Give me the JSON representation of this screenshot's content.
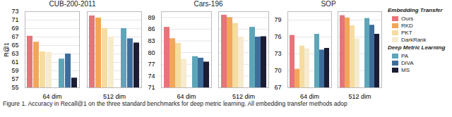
{
  "chart_data": [
    {
      "type": "bar",
      "title": "CUB-200-2011",
      "ylabel": "R@1",
      "categories": [
        "64 dim",
        "512 dim"
      ],
      "series": [
        {
          "name": "Ours",
          "color": "#e8737a",
          "values": [
            67.2,
            72.0
          ]
        },
        {
          "name": "RKD",
          "color": "#f2a65a",
          "values": [
            65.8,
            71.5
          ]
        },
        {
          "name": "PKT",
          "color": "#f5dca0",
          "values": [
            63.5,
            69.0
          ]
        },
        {
          "name": "DarkRank",
          "color": "#f6ebcf",
          "values": [
            63.4,
            67.0
          ]
        },
        {
          "name": "PA",
          "color": "#5ea5b8",
          "values": [
            61.8,
            69.0
          ]
        },
        {
          "name": "DiVA",
          "color": "#3e6d9c",
          "values": [
            63.0,
            66.6
          ]
        },
        {
          "name": "MS",
          "color": "#1a1d33",
          "values": [
            57.3,
            65.6
          ]
        }
      ],
      "ylim": [
        55,
        73
      ],
      "yticks": [
        55,
        57,
        59,
        61,
        63,
        65,
        67,
        69,
        71,
        73
      ],
      "grid": true
    },
    {
      "type": "bar",
      "title": "Cars-196",
      "categories": [
        "64 dim",
        "512 dim"
      ],
      "series": [
        {
          "name": "Ours",
          "color": "#e8737a",
          "values": [
            86.5,
            89.6
          ]
        },
        {
          "name": "RKD",
          "color": "#f2a65a",
          "values": [
            83.6,
            89.0
          ]
        },
        {
          "name": "PKT",
          "color": "#f5dca0",
          "values": [
            82.4,
            87.5
          ]
        },
        {
          "name": "DarkRank",
          "color": "#f6ebcf",
          "values": [
            78.3,
            84.0
          ]
        },
        {
          "name": "PA",
          "color": "#5ea5b8",
          "values": [
            79.0,
            86.5
          ]
        },
        {
          "name": "DiVA",
          "color": "#3e6d9c",
          "values": [
            78.6,
            84.0
          ]
        },
        {
          "name": "MS",
          "color": "#1a1d33",
          "values": [
            77.6,
            84.1
          ]
        }
      ],
      "ylim": [
        71,
        90.5
      ],
      "yticks": [
        71,
        74,
        77,
        80,
        83,
        86,
        89
      ],
      "grid": true
    },
    {
      "type": "bar",
      "title": "SOP",
      "categories": [
        "64 dim",
        "512 dim"
      ],
      "series": [
        {
          "name": "Ours",
          "color": "#e8737a",
          "values": [
            76.3,
            79.8
          ]
        },
        {
          "name": "RKD",
          "color": "#f2a65a",
          "values": [
            70.3,
            79.4
          ]
        },
        {
          "name": "PKT",
          "color": "#f5dca0",
          "values": [
            74.4,
            78.0
          ]
        },
        {
          "name": "DarkRank",
          "color": "#f6ebcf",
          "values": [
            73.9,
            75.7
          ]
        },
        {
          "name": "PA",
          "color": "#5ea5b8",
          "values": [
            76.5,
            79.3
          ]
        },
        {
          "name": "DiVA",
          "color": "#3e6d9c",
          "values": [
            73.7,
            78.1
          ]
        },
        {
          "name": "MS",
          "color": "#1a1d33",
          "values": [
            74.0,
            76.5
          ]
        }
      ],
      "ylim": [
        67,
        80.5
      ],
      "yticks": [
        67,
        70,
        73,
        76,
        79
      ],
      "grid": true
    }
  ],
  "legend_groups": [
    {
      "title": "Embedding Transfer",
      "series": [
        "Ours",
        "RKD",
        "PKT",
        "DarkRank"
      ]
    },
    {
      "title": "Deep Metric Learning",
      "series": [
        "PA",
        "DiVA",
        "MS"
      ]
    }
  ],
  "caption": "Figure 1.  Accuracy in Recall@1 on the three standard benchmarks for deep metric learning. All embedding transfer methods adop"
}
